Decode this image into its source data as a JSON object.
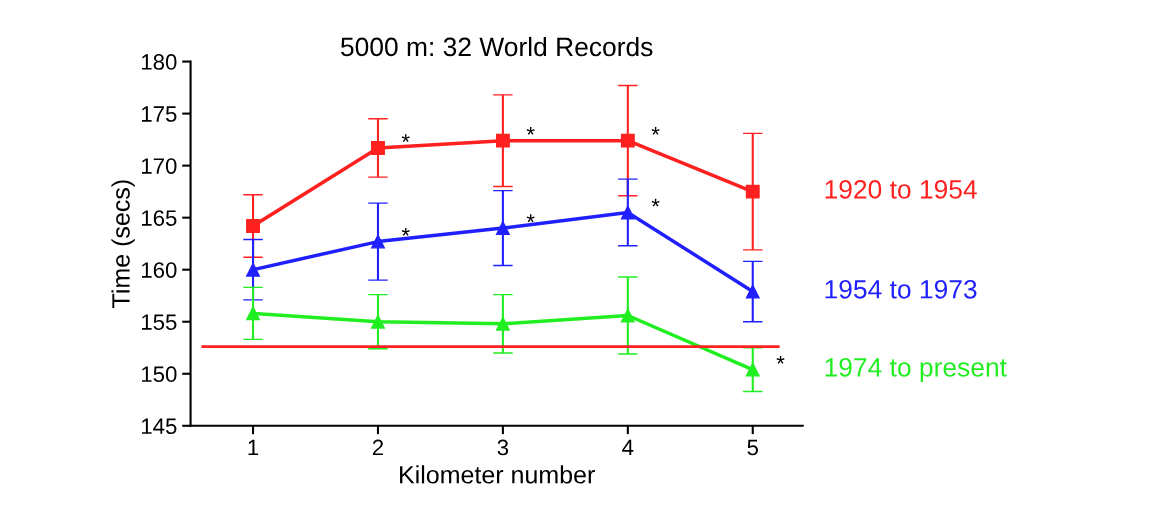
{
  "chart_data": {
    "type": "line",
    "title": "5000 m: 32 World Records",
    "xlabel": "Kilometer number",
    "ylabel": "Time (secs)",
    "x": [
      1,
      2,
      3,
      4,
      5
    ],
    "xlim": [
      0.5,
      5.4
    ],
    "xticks": [
      1,
      2,
      3,
      4,
      5
    ],
    "ylim": [
      145,
      180
    ],
    "yticks": [
      145,
      150,
      155,
      160,
      165,
      170,
      175,
      180
    ],
    "grid": false,
    "legend": false,
    "line_style": "solid",
    "series": [
      {
        "name": "1920 to 1954",
        "color": "#ff2020",
        "marker": "square",
        "values": [
          164.2,
          171.7,
          172.4,
          172.4,
          167.5
        ],
        "errors": [
          3.0,
          2.8,
          4.4,
          5.3,
          5.6
        ]
      },
      {
        "name": "1954 to 1973",
        "color": "#2020ff",
        "marker": "triangle",
        "values": [
          160.0,
          162.7,
          164.0,
          165.5,
          157.9
        ],
        "errors": [
          2.9,
          3.7,
          3.6,
          3.2,
          2.9
        ]
      },
      {
        "name": "1974 to present",
        "color": "#20ee20",
        "marker": "triangle",
        "values": [
          155.8,
          155.0,
          154.8,
          155.6,
          150.4
        ],
        "errors": [
          2.5,
          2.6,
          2.8,
          3.7,
          2.1
        ]
      }
    ],
    "ref_lines": [
      {
        "axis": "y",
        "value": 152.6,
        "color": "#ff2020",
        "line_style": "solid"
      }
    ],
    "annotations": [
      {
        "text": "*",
        "x": 2,
        "y": 171.7
      },
      {
        "text": "*",
        "x": 3,
        "y": 172.4
      },
      {
        "text": "*",
        "x": 4,
        "y": 172.4
      },
      {
        "text": "*",
        "x": 2,
        "y": 162.7
      },
      {
        "text": "*",
        "x": 3,
        "y": 164.0
      },
      {
        "text": "*",
        "x": 4,
        "y": 165.5
      },
      {
        "text": "*",
        "x": 5,
        "y": 150.4
      }
    ]
  }
}
